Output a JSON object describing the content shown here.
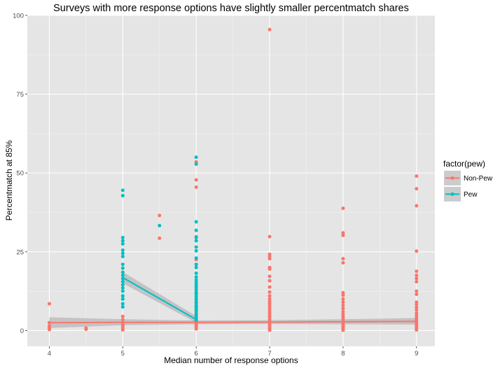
{
  "chart_data": {
    "type": "scatter",
    "title": "Surveys with more response options have slightly smaller percentmatch shares",
    "xlabel": "Median number of response options",
    "ylabel": "Percentmatch at 85%",
    "xlim": [
      3.7,
      9.25
    ],
    "ylim": [
      -5,
      100
    ],
    "xticks": [
      4,
      5,
      6,
      7,
      8,
      9
    ],
    "yticks": [
      0,
      25,
      50,
      75,
      100
    ],
    "grid": true,
    "legend": {
      "title": "factor(pew)",
      "position": "right"
    },
    "colors": {
      "Non-Pew": "#f8766d",
      "Pew": "#00bfc4",
      "panel": "#e5e5e5",
      "ribbon": "#999999"
    },
    "series": [
      {
        "name": "Non-Pew",
        "points": [
          [
            4,
            8.5
          ],
          [
            4,
            2.5
          ],
          [
            4,
            1.5
          ],
          [
            4,
            1.0
          ],
          [
            4,
            0.5
          ],
          [
            4,
            0.3
          ],
          [
            4.5,
            0.8
          ],
          [
            4.5,
            0.4
          ],
          [
            5,
            4.5
          ],
          [
            5,
            3.5
          ],
          [
            5,
            2.5
          ],
          [
            5,
            1.8
          ],
          [
            5,
            1.2
          ],
          [
            5,
            0.6
          ],
          [
            5,
            0.2
          ],
          [
            5.5,
            36.5
          ],
          [
            5.5,
            29.3
          ],
          [
            6,
            53.5
          ],
          [
            6,
            47.8
          ],
          [
            6,
            45.5
          ],
          [
            6,
            29.8
          ],
          [
            6,
            22.5
          ],
          [
            6,
            12.0
          ],
          [
            6,
            9.0
          ],
          [
            6,
            7.5
          ],
          [
            6,
            6.5
          ],
          [
            6,
            5.5
          ],
          [
            6,
            4.8
          ],
          [
            6,
            4.0
          ],
          [
            6,
            3.5
          ],
          [
            6,
            3.0
          ],
          [
            6,
            2.5
          ],
          [
            6,
            2.0
          ],
          [
            6,
            1.5
          ],
          [
            6,
            1.0
          ],
          [
            6,
            0.5
          ],
          [
            7,
            95.5
          ],
          [
            7,
            29.8
          ],
          [
            7,
            24.2
          ],
          [
            7,
            23.5
          ],
          [
            7,
            22.8
          ],
          [
            7,
            20.0
          ],
          [
            7,
            19.5
          ],
          [
            7,
            17.2
          ],
          [
            7,
            15.8
          ],
          [
            7,
            13.8
          ],
          [
            7,
            12.2
          ],
          [
            7,
            11.0
          ],
          [
            7,
            10.0
          ],
          [
            7,
            9.2
          ],
          [
            7,
            8.5
          ],
          [
            7,
            7.8
          ],
          [
            7,
            7.0
          ],
          [
            7,
            6.2
          ],
          [
            7,
            5.5
          ],
          [
            7,
            4.8
          ],
          [
            7,
            4.2
          ],
          [
            7,
            3.5
          ],
          [
            7,
            2.8
          ],
          [
            7,
            2.2
          ],
          [
            7,
            1.6
          ],
          [
            7,
            1.0
          ],
          [
            7,
            0.5
          ],
          [
            7,
            0.1
          ],
          [
            8,
            38.8
          ],
          [
            8,
            31.0
          ],
          [
            8,
            30.2
          ],
          [
            8,
            22.8
          ],
          [
            8,
            21.5
          ],
          [
            8,
            12.0
          ],
          [
            8,
            11.2
          ],
          [
            8,
            10.0
          ],
          [
            8,
            9.0
          ],
          [
            8,
            8.0
          ],
          [
            8,
            7.0
          ],
          [
            8,
            6.0
          ],
          [
            8,
            5.2
          ],
          [
            8,
            4.5
          ],
          [
            8,
            3.8
          ],
          [
            8,
            3.0
          ],
          [
            8,
            2.4
          ],
          [
            8,
            1.8
          ],
          [
            8,
            1.2
          ],
          [
            8,
            0.6
          ],
          [
            8,
            0.1
          ],
          [
            9,
            49.0
          ],
          [
            9,
            45.0
          ],
          [
            9,
            39.6
          ],
          [
            9,
            25.2
          ],
          [
            9,
            18.8
          ],
          [
            9,
            17.5
          ],
          [
            9,
            16.5
          ],
          [
            9,
            15.5
          ],
          [
            9,
            12.5
          ],
          [
            9,
            11.5
          ],
          [
            9,
            9.0
          ],
          [
            9,
            8.2
          ],
          [
            9,
            7.3
          ],
          [
            9,
            6.5
          ],
          [
            9,
            5.5
          ],
          [
            9,
            4.8
          ],
          [
            9,
            4.0
          ],
          [
            9,
            3.3
          ],
          [
            9,
            2.6
          ],
          [
            9,
            2.0
          ],
          [
            9,
            1.4
          ],
          [
            9,
            0.8
          ],
          [
            9,
            0.2
          ]
        ],
        "trend": [
          [
            4,
            2.5
          ],
          [
            5,
            2.6
          ],
          [
            6,
            2.6
          ],
          [
            7,
            2.7
          ],
          [
            8,
            2.8
          ],
          [
            9,
            2.9
          ]
        ],
        "ribbon": [
          [
            4,
            0.8,
            4.2
          ],
          [
            5,
            1.7,
            3.6
          ],
          [
            6,
            2.0,
            3.2
          ],
          [
            7,
            2.1,
            3.3
          ],
          [
            8,
            2.0,
            3.6
          ],
          [
            9,
            1.9,
            4.0
          ]
        ]
      },
      {
        "name": "Pew",
        "points": [
          [
            5,
            44.5
          ],
          [
            5,
            42.8
          ],
          [
            5,
            29.5
          ],
          [
            5,
            28.5
          ],
          [
            5,
            27.5
          ],
          [
            5,
            25.5
          ],
          [
            5,
            24.5
          ],
          [
            5,
            23.5
          ],
          [
            5,
            21.0
          ],
          [
            5,
            19.8
          ],
          [
            5,
            18.5
          ],
          [
            5,
            17.5
          ],
          [
            5,
            16.5
          ],
          [
            5,
            15.5
          ],
          [
            5,
            14.5
          ],
          [
            5,
            13.5
          ],
          [
            5,
            12.5
          ],
          [
            5,
            11.0
          ],
          [
            5,
            10.0
          ],
          [
            5,
            8.5
          ],
          [
            5,
            7.5
          ],
          [
            5.5,
            33.3
          ],
          [
            6,
            55.0
          ],
          [
            6,
            52.8
          ],
          [
            6,
            34.5
          ],
          [
            6,
            31.8
          ],
          [
            6,
            29.5
          ],
          [
            6,
            28.5
          ],
          [
            6,
            26.5
          ],
          [
            6,
            25.3
          ],
          [
            6,
            23.0
          ],
          [
            6,
            21.0
          ],
          [
            6,
            20.0
          ],
          [
            6,
            18.2
          ],
          [
            6,
            17.0
          ],
          [
            6,
            16.0
          ],
          [
            6,
            15.2
          ],
          [
            6,
            14.5
          ],
          [
            6,
            13.8
          ],
          [
            6,
            13.0
          ],
          [
            6,
            12.2
          ],
          [
            6,
            11.5
          ],
          [
            6,
            10.8
          ],
          [
            6,
            10.0
          ],
          [
            6,
            9.3
          ],
          [
            6,
            8.5
          ],
          [
            6,
            7.8
          ],
          [
            6,
            7.0
          ],
          [
            6,
            6.2
          ],
          [
            6,
            5.4
          ],
          [
            6,
            4.6
          ],
          [
            6,
            3.8
          ],
          [
            6,
            3.0
          ]
        ],
        "trend": [
          [
            5,
            16.8
          ],
          [
            6,
            3.5
          ]
        ],
        "ribbon": [
          [
            5,
            15.0,
            18.6
          ],
          [
            6,
            2.5,
            4.6
          ]
        ]
      }
    ]
  }
}
